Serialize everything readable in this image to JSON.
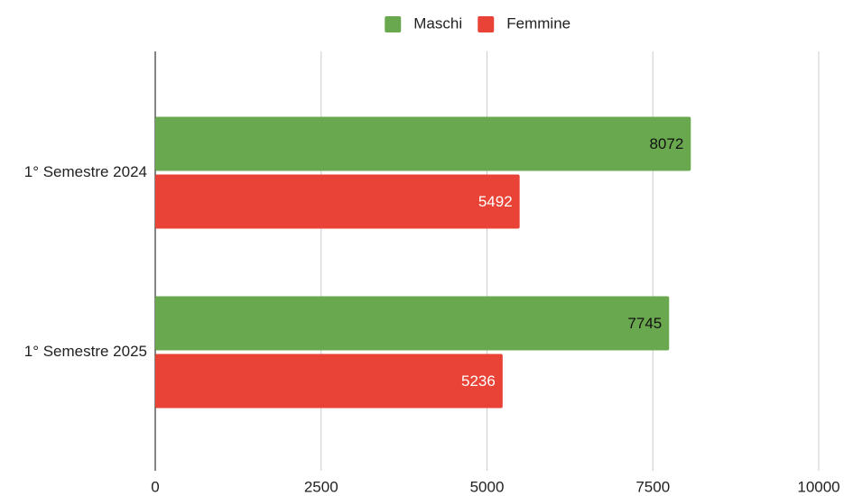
{
  "chart_data": {
    "type": "horizontal_bar",
    "categories": [
      "1° Semestre 2024",
      "1° Semestre 2025"
    ],
    "series": [
      {
        "name": "Maschi",
        "color": "#6aa84f",
        "values": [
          8072,
          7745
        ]
      },
      {
        "name": "Femmine",
        "color": "#e84336",
        "values": [
          5492,
          5236
        ]
      }
    ],
    "xlim": [
      0,
      10000
    ],
    "xticks": [
      0,
      2500,
      5000,
      7500,
      10000
    ],
    "grid": true,
    "legend": "top"
  }
}
